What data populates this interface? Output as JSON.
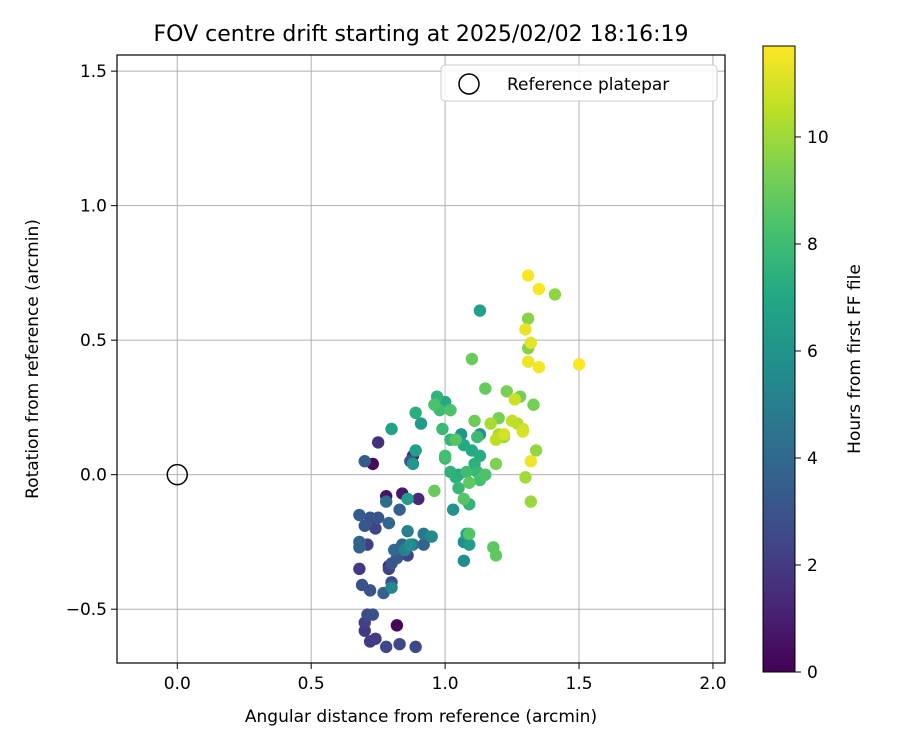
{
  "chart_data": {
    "type": "scatter",
    "title": "FOV centre drift starting at 2025/02/02 18:16:19",
    "xlabel": "Angular distance from reference (arcmin)",
    "ylabel": "Rotation from reference (arcmin)",
    "xlim": [
      -0.225,
      2.045
    ],
    "ylim": [
      -0.7,
      1.56
    ],
    "x_ticks": [
      0.0,
      0.5,
      1.0,
      1.5,
      2.0
    ],
    "x_tick_labels": [
      "0.0",
      "0.5",
      "1.0",
      "1.5",
      "2.0"
    ],
    "y_ticks": [
      -0.5,
      0.0,
      0.5,
      1.0,
      1.5
    ],
    "y_tick_labels": [
      "−0.5",
      "0.0",
      "0.5",
      "1.0",
      "1.5"
    ],
    "grid": true,
    "legend": {
      "placement": "top-right",
      "entries": [
        "Reference platepar"
      ]
    },
    "reference_point": {
      "x": 0.0,
      "y": 0.0,
      "name": "Reference platepar"
    },
    "colorbar": {
      "label": "Hours from first FF file",
      "colormap": "viridis",
      "range": [
        0,
        11.7
      ],
      "ticks": [
        0,
        2,
        4,
        6,
        8,
        10
      ],
      "tick_labels": [
        "0",
        "2",
        "4",
        "6",
        "8",
        "10"
      ]
    },
    "points": [
      {
        "x": 0.82,
        "y": -0.56,
        "t": 0.2
      },
      {
        "x": 0.73,
        "y": 0.04,
        "t": 0.3
      },
      {
        "x": 0.78,
        "y": -0.08,
        "t": 0.6
      },
      {
        "x": 0.84,
        "y": -0.07,
        "t": 0.8
      },
      {
        "x": 0.79,
        "y": -0.34,
        "t": 0.9
      },
      {
        "x": 0.88,
        "y": 0.07,
        "t": 1.2
      },
      {
        "x": 0.9,
        "y": -0.09,
        "t": 1.4
      },
      {
        "x": 0.75,
        "y": 0.12,
        "t": 1.6
      },
      {
        "x": 0.82,
        "y": -0.28,
        "t": 1.8
      },
      {
        "x": 0.68,
        "y": -0.35,
        "t": 1.9
      },
      {
        "x": 0.7,
        "y": -0.58,
        "t": 2.0
      },
      {
        "x": 0.72,
        "y": -0.62,
        "t": 2.0
      },
      {
        "x": 0.74,
        "y": -0.61,
        "t": 2.1
      },
      {
        "x": 0.7,
        "y": -0.55,
        "t": 2.2
      },
      {
        "x": 0.71,
        "y": -0.26,
        "t": 2.2
      },
      {
        "x": 0.79,
        "y": -0.35,
        "t": 2.3
      },
      {
        "x": 0.86,
        "y": -0.3,
        "t": 2.3
      },
      {
        "x": 0.74,
        "y": -0.2,
        "t": 2.4
      },
      {
        "x": 0.78,
        "y": -0.64,
        "t": 2.5
      },
      {
        "x": 0.83,
        "y": -0.63,
        "t": 2.5
      },
      {
        "x": 0.89,
        "y": -0.64,
        "t": 2.6
      },
      {
        "x": 0.71,
        "y": -0.52,
        "t": 2.7
      },
      {
        "x": 0.73,
        "y": -0.52,
        "t": 2.8
      },
      {
        "x": 0.8,
        "y": -0.4,
        "t": 2.8
      },
      {
        "x": 0.72,
        "y": -0.16,
        "t": 2.9
      },
      {
        "x": 0.69,
        "y": -0.41,
        "t": 3.0
      },
      {
        "x": 0.72,
        "y": -0.43,
        "t": 3.0
      },
      {
        "x": 0.7,
        "y": -0.19,
        "t": 3.1
      },
      {
        "x": 0.75,
        "y": -0.16,
        "t": 3.1
      },
      {
        "x": 0.8,
        "y": -0.33,
        "t": 3.2
      },
      {
        "x": 0.82,
        "y": -0.31,
        "t": 3.2
      },
      {
        "x": 0.87,
        "y": 0.05,
        "t": 3.3
      },
      {
        "x": 0.68,
        "y": -0.15,
        "t": 3.4
      },
      {
        "x": 0.7,
        "y": 0.05,
        "t": 3.4
      },
      {
        "x": 0.83,
        "y": -0.13,
        "t": 3.5
      },
      {
        "x": 0.77,
        "y": -0.44,
        "t": 3.6
      },
      {
        "x": 0.92,
        "y": -0.26,
        "t": 3.6
      },
      {
        "x": 0.68,
        "y": -0.25,
        "t": 3.7
      },
      {
        "x": 0.68,
        "y": -0.27,
        "t": 3.7
      },
      {
        "x": 0.79,
        "y": -0.18,
        "t": 3.8
      },
      {
        "x": 0.84,
        "y": -0.26,
        "t": 3.9
      },
      {
        "x": 0.81,
        "y": -0.28,
        "t": 4.0
      },
      {
        "x": 0.78,
        "y": -0.1,
        "t": 4.1
      },
      {
        "x": 0.88,
        "y": -0.26,
        "t": 4.3
      },
      {
        "x": 0.92,
        "y": -0.22,
        "t": 4.7
      },
      {
        "x": 0.86,
        "y": -0.21,
        "t": 5.0
      },
      {
        "x": 0.85,
        "y": -0.28,
        "t": 5.2
      },
      {
        "x": 0.8,
        "y": -0.42,
        "t": 5.4
      },
      {
        "x": 0.95,
        "y": -0.23,
        "t": 5.5
      },
      {
        "x": 1.07,
        "y": -0.25,
        "t": 5.6
      },
      {
        "x": 1.07,
        "y": -0.32,
        "t": 5.7
      },
      {
        "x": 0.87,
        "y": -0.26,
        "t": 5.8
      },
      {
        "x": 1.13,
        "y": 0.15,
        "t": 5.9
      },
      {
        "x": 1.03,
        "y": -0.13,
        "t": 6.0
      },
      {
        "x": 0.88,
        "y": 0.04,
        "t": 6.1
      },
      {
        "x": 1.06,
        "y": 0.15,
        "t": 6.2
      },
      {
        "x": 0.91,
        "y": 0.19,
        "t": 6.3
      },
      {
        "x": 1.09,
        "y": -0.26,
        "t": 6.4
      },
      {
        "x": 0.86,
        "y": -0.09,
        "t": 6.5
      },
      {
        "x": 0.89,
        "y": 0.09,
        "t": 6.6
      },
      {
        "x": 1.13,
        "y": 0.61,
        "t": 6.6
      },
      {
        "x": 0.8,
        "y": 0.17,
        "t": 6.7
      },
      {
        "x": 1.08,
        "y": -0.22,
        "t": 6.8
      },
      {
        "x": 1.05,
        "y": 0.0,
        "t": 6.9
      },
      {
        "x": 1.0,
        "y": 0.27,
        "t": 7.0
      },
      {
        "x": 1.07,
        "y": 0.11,
        "t": 7.1
      },
      {
        "x": 1.1,
        "y": 0.09,
        "t": 7.1
      },
      {
        "x": 1.13,
        "y": 0.07,
        "t": 7.2
      },
      {
        "x": 0.89,
        "y": 0.23,
        "t": 7.3
      },
      {
        "x": 1.04,
        "y": -0.01,
        "t": 7.4
      },
      {
        "x": 1.11,
        "y": 0.04,
        "t": 7.4
      },
      {
        "x": 1.02,
        "y": 0.01,
        "t": 7.5
      },
      {
        "x": 0.97,
        "y": 0.29,
        "t": 7.6
      },
      {
        "x": 1.09,
        "y": -0.11,
        "t": 7.6
      },
      {
        "x": 1.02,
        "y": 0.13,
        "t": 7.7
      },
      {
        "x": 1.05,
        "y": -0.05,
        "t": 7.8
      },
      {
        "x": 1.12,
        "y": 0.01,
        "t": 7.8
      },
      {
        "x": 1.0,
        "y": 0.06,
        "t": 7.9
      },
      {
        "x": 0.99,
        "y": 0.17,
        "t": 7.9
      },
      {
        "x": 1.12,
        "y": 0.14,
        "t": 8.0
      },
      {
        "x": 0.98,
        "y": 0.24,
        "t": 8.0
      },
      {
        "x": 1.08,
        "y": 0.01,
        "t": 8.1
      },
      {
        "x": 1.13,
        "y": -0.02,
        "t": 8.2
      },
      {
        "x": 1.0,
        "y": 0.07,
        "t": 8.2
      },
      {
        "x": 0.96,
        "y": 0.26,
        "t": 8.3
      },
      {
        "x": 1.15,
        "y": 0.0,
        "t": 8.4
      },
      {
        "x": 1.02,
        "y": 0.24,
        "t": 8.4
      },
      {
        "x": 1.09,
        "y": -0.22,
        "t": 8.5
      },
      {
        "x": 1.07,
        "y": -0.09,
        "t": 8.6
      },
      {
        "x": 1.04,
        "y": 0.13,
        "t": 8.6
      },
      {
        "x": 1.18,
        "y": -0.27,
        "t": 8.7
      },
      {
        "x": 1.19,
        "y": -0.3,
        "t": 8.8
      },
      {
        "x": 1.09,
        "y": -0.03,
        "t": 8.8
      },
      {
        "x": 1.15,
        "y": 0.32,
        "t": 8.9
      },
      {
        "x": 1.1,
        "y": 0.43,
        "t": 9.0
      },
      {
        "x": 0.96,
        "y": -0.06,
        "t": 9.0
      },
      {
        "x": 1.11,
        "y": 0.2,
        "t": 9.1
      },
      {
        "x": 1.33,
        "y": 0.26,
        "t": 9.2
      },
      {
        "x": 1.28,
        "y": 0.29,
        "t": 9.2
      },
      {
        "x": 1.2,
        "y": 0.21,
        "t": 9.3
      },
      {
        "x": 1.23,
        "y": 0.31,
        "t": 9.3
      },
      {
        "x": 1.19,
        "y": 0.04,
        "t": 9.4
      },
      {
        "x": 1.31,
        "y": 0.47,
        "t": 9.5
      },
      {
        "x": 1.31,
        "y": 0.58,
        "t": 9.6
      },
      {
        "x": 1.41,
        "y": 0.67,
        "t": 9.7
      },
      {
        "x": 1.34,
        "y": 0.09,
        "t": 9.8
      },
      {
        "x": 1.32,
        "y": -0.1,
        "t": 9.9
      },
      {
        "x": 1.22,
        "y": 0.14,
        "t": 10.0
      },
      {
        "x": 1.3,
        "y": -0.01,
        "t": 10.1
      },
      {
        "x": 1.17,
        "y": 0.19,
        "t": 10.2
      },
      {
        "x": 1.2,
        "y": 0.15,
        "t": 10.3
      },
      {
        "x": 1.27,
        "y": 0.19,
        "t": 10.4
      },
      {
        "x": 1.19,
        "y": 0.13,
        "t": 10.5
      },
      {
        "x": 1.25,
        "y": 0.2,
        "t": 10.6
      },
      {
        "x": 1.29,
        "y": 0.17,
        "t": 10.7
      },
      {
        "x": 1.26,
        "y": 0.28,
        "t": 10.8
      },
      {
        "x": 1.22,
        "y": 0.15,
        "t": 10.9
      },
      {
        "x": 1.29,
        "y": 0.16,
        "t": 11.0
      },
      {
        "x": 1.32,
        "y": 0.49,
        "t": 11.2
      },
      {
        "x": 1.3,
        "y": 0.54,
        "t": 11.3
      },
      {
        "x": 1.31,
        "y": 0.42,
        "t": 11.4
      },
      {
        "x": 1.32,
        "y": 0.05,
        "t": 11.4
      },
      {
        "x": 1.35,
        "y": 0.4,
        "t": 11.5
      },
      {
        "x": 1.31,
        "y": 0.74,
        "t": 11.6
      },
      {
        "x": 1.35,
        "y": 0.69,
        "t": 11.6
      },
      {
        "x": 1.5,
        "y": 0.41,
        "t": 11.7
      }
    ]
  }
}
